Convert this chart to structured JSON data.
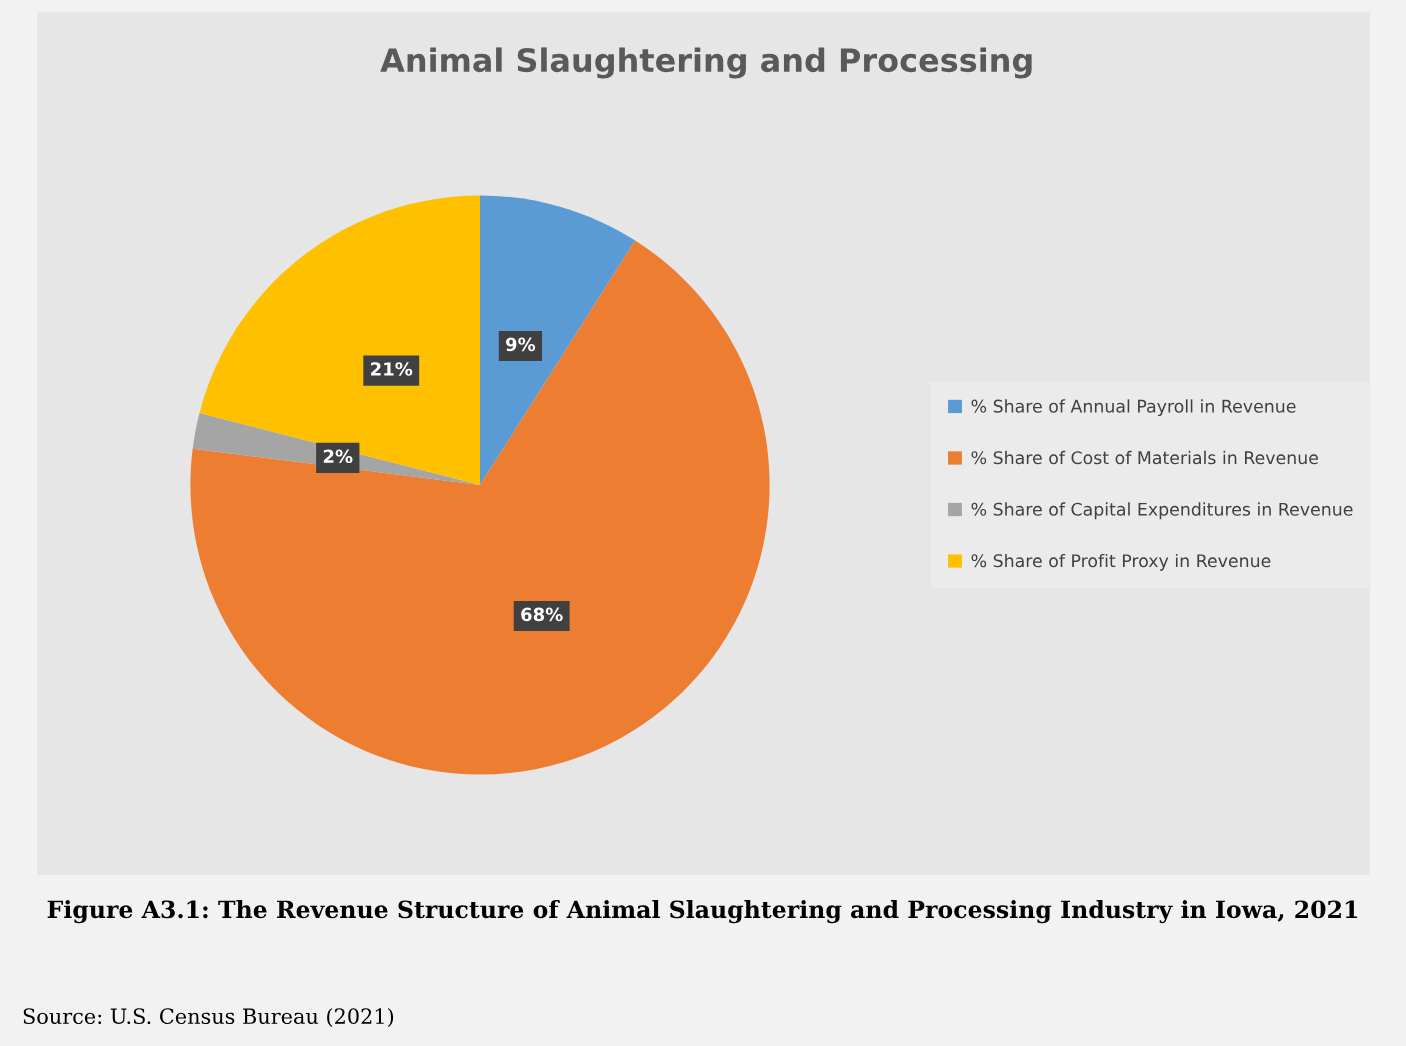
{
  "chart_data": {
    "type": "pie",
    "title": "Animal Slaughtering and Processing",
    "categories": [
      "% Share of Annual Payroll in Revenue",
      "% Share of Cost of Materials in Revenue",
      "% Share of Capital Expenditures in Revenue",
      "% Share of Profit Proxy in Revenue"
    ],
    "values": [
      9,
      68,
      2,
      21
    ],
    "colors": [
      "#5b9bd5",
      "#ed7d31",
      "#a5a5a5",
      "#ffc000"
    ],
    "value_labels": [
      "9%",
      "68%",
      "2%",
      "21%"
    ],
    "legend": "right",
    "annotations": [
      "Figure A3.1: The Revenue Structure of Animal Slaughtering and Processing Industry in Iowa, 2021",
      "Source: U.S. Census Bureau (2021)"
    ]
  }
}
